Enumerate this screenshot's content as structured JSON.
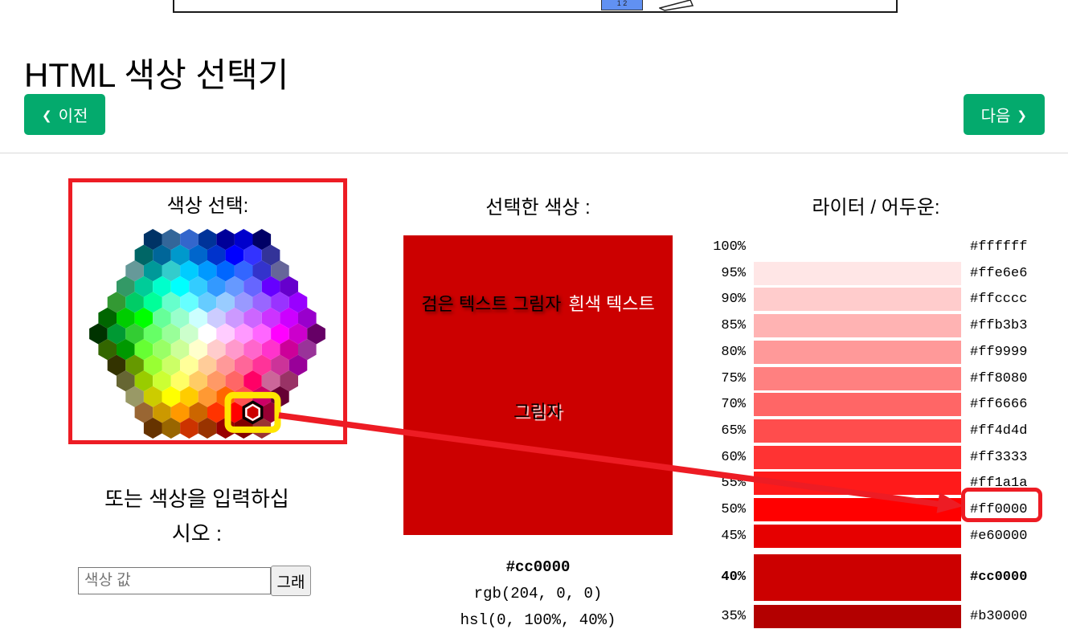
{
  "page": {
    "title": "HTML 색상 선택기"
  },
  "nav": {
    "prev_label": "이전",
    "next_label": "다음",
    "chevron_left": "❮",
    "chevron_right": "❯"
  },
  "top_demo": {
    "chip_label": "1 2",
    "chip_color": "#6191f2",
    "cursor_icon": "cursor-icon"
  },
  "picker": {
    "title": "색상 선택:",
    "selected": {
      "row": 11,
      "col": 6,
      "hex": "#cc0000"
    },
    "rows": [
      [
        "#003366",
        "#336699",
        "#3366cc",
        "#003399",
        "#000099",
        "#0000cc",
        "#000066"
      ],
      [
        "#006666",
        "#006699",
        "#0099cc",
        "#0066cc",
        "#0033cc",
        "#0000ff",
        "#3333ff",
        "#333399"
      ],
      [
        "#669999",
        "#009999",
        "#33cccc",
        "#00ccff",
        "#0099ff",
        "#0066ff",
        "#3366ff",
        "#3333cc",
        "#666699"
      ],
      [
        "#339966",
        "#00cc99",
        "#00ffcc",
        "#00ffff",
        "#33ccff",
        "#3399ff",
        "#6699ff",
        "#6666ff",
        "#6600ff",
        "#6600cc"
      ],
      [
        "#339933",
        "#00cc66",
        "#00ff99",
        "#66ffcc",
        "#66ffff",
        "#66ccff",
        "#99ccff",
        "#9999ff",
        "#9966ff",
        "#9933ff",
        "#9900ff"
      ],
      [
        "#006600",
        "#00cc00",
        "#00ff00",
        "#66ff99",
        "#99ffcc",
        "#ccffff",
        "#ccccff",
        "#cc99ff",
        "#cc66ff",
        "#cc33ff",
        "#cc00ff",
        "#9900cc"
      ],
      [
        "#003300",
        "#009933",
        "#33cc33",
        "#66ff66",
        "#99ff99",
        "#ccffcc",
        "#ffffff",
        "#ffccff",
        "#ff99ff",
        "#ff66ff",
        "#ff00ff",
        "#cc00cc",
        "#660066"
      ],
      [
        "#336600",
        "#009900",
        "#66ff33",
        "#99ff66",
        "#ccff99",
        "#ffffcc",
        "#ffcccc",
        "#ff99cc",
        "#ff66cc",
        "#ff33cc",
        "#cc0099",
        "#993399"
      ],
      [
        "#333300",
        "#669900",
        "#99ff33",
        "#ccff66",
        "#ffff99",
        "#ffcc99",
        "#ff9999",
        "#ff6699",
        "#ff3399",
        "#cc3399",
        "#990099"
      ],
      [
        "#666633",
        "#99cc00",
        "#ccff33",
        "#ffff66",
        "#ffcc66",
        "#ff9966",
        "#ff6666",
        "#ff0066",
        "#cc6699",
        "#993366"
      ],
      [
        "#999966",
        "#cccc00",
        "#ffff00",
        "#ffcc00",
        "#ff9933",
        "#ff6600",
        "#ff5050",
        "#cc0066",
        "#660033"
      ],
      [
        "#996633",
        "#cc9900",
        "#ff9900",
        "#cc6600",
        "#ff3300",
        "#ff0000",
        "#cc0000",
        "#990033"
      ],
      [
        "#663300",
        "#996600",
        "#cc3300",
        "#993300",
        "#990000",
        "#800000",
        "#993333"
      ]
    ]
  },
  "selected_color": {
    "title": "선택한 색상 :",
    "hex": "#cc0000",
    "swatch_texts": {
      "black_shadow": "검은 텍스트 그림자",
      "white": "흰색 텍스트",
      "shadow": "그림자"
    },
    "values": {
      "hex": "#cc0000",
      "rgb": "rgb(204, 0, 0)",
      "hsl": "hsl(0, 100%, 40%)"
    }
  },
  "lighter_darker": {
    "title": "라이터 / 어두운:",
    "rows": [
      {
        "percent": "100%",
        "hex": "#ffffff"
      },
      {
        "percent": "95%",
        "hex": "#ffe6e6"
      },
      {
        "percent": "90%",
        "hex": "#ffcccc"
      },
      {
        "percent": "85%",
        "hex": "#ffb3b3"
      },
      {
        "percent": "80%",
        "hex": "#ff9999"
      },
      {
        "percent": "75%",
        "hex": "#ff8080"
      },
      {
        "percent": "70%",
        "hex": "#ff6666"
      },
      {
        "percent": "65%",
        "hex": "#ff4d4d"
      },
      {
        "percent": "60%",
        "hex": "#ff3333"
      },
      {
        "percent": "55%",
        "hex": "#ff1a1a"
      },
      {
        "percent": "50%",
        "hex": "#ff0000",
        "highlighted": true
      },
      {
        "percent": "45%",
        "hex": "#e60000"
      },
      {
        "percent": "40%",
        "hex": "#cc0000",
        "current": true
      },
      {
        "percent": "35%",
        "hex": "#b30000"
      }
    ]
  },
  "input_section": {
    "prompt_line1": "또는 색상을 입력하십",
    "prompt_line2": "시오 :",
    "placeholder": "색상 값",
    "submit_label": "그래"
  },
  "colors": {
    "accent_green": "#04aa6d",
    "annotation_red": "#ed1c24",
    "marker_yellow": "#ffe600",
    "selected_swatch": "#cc0000"
  }
}
